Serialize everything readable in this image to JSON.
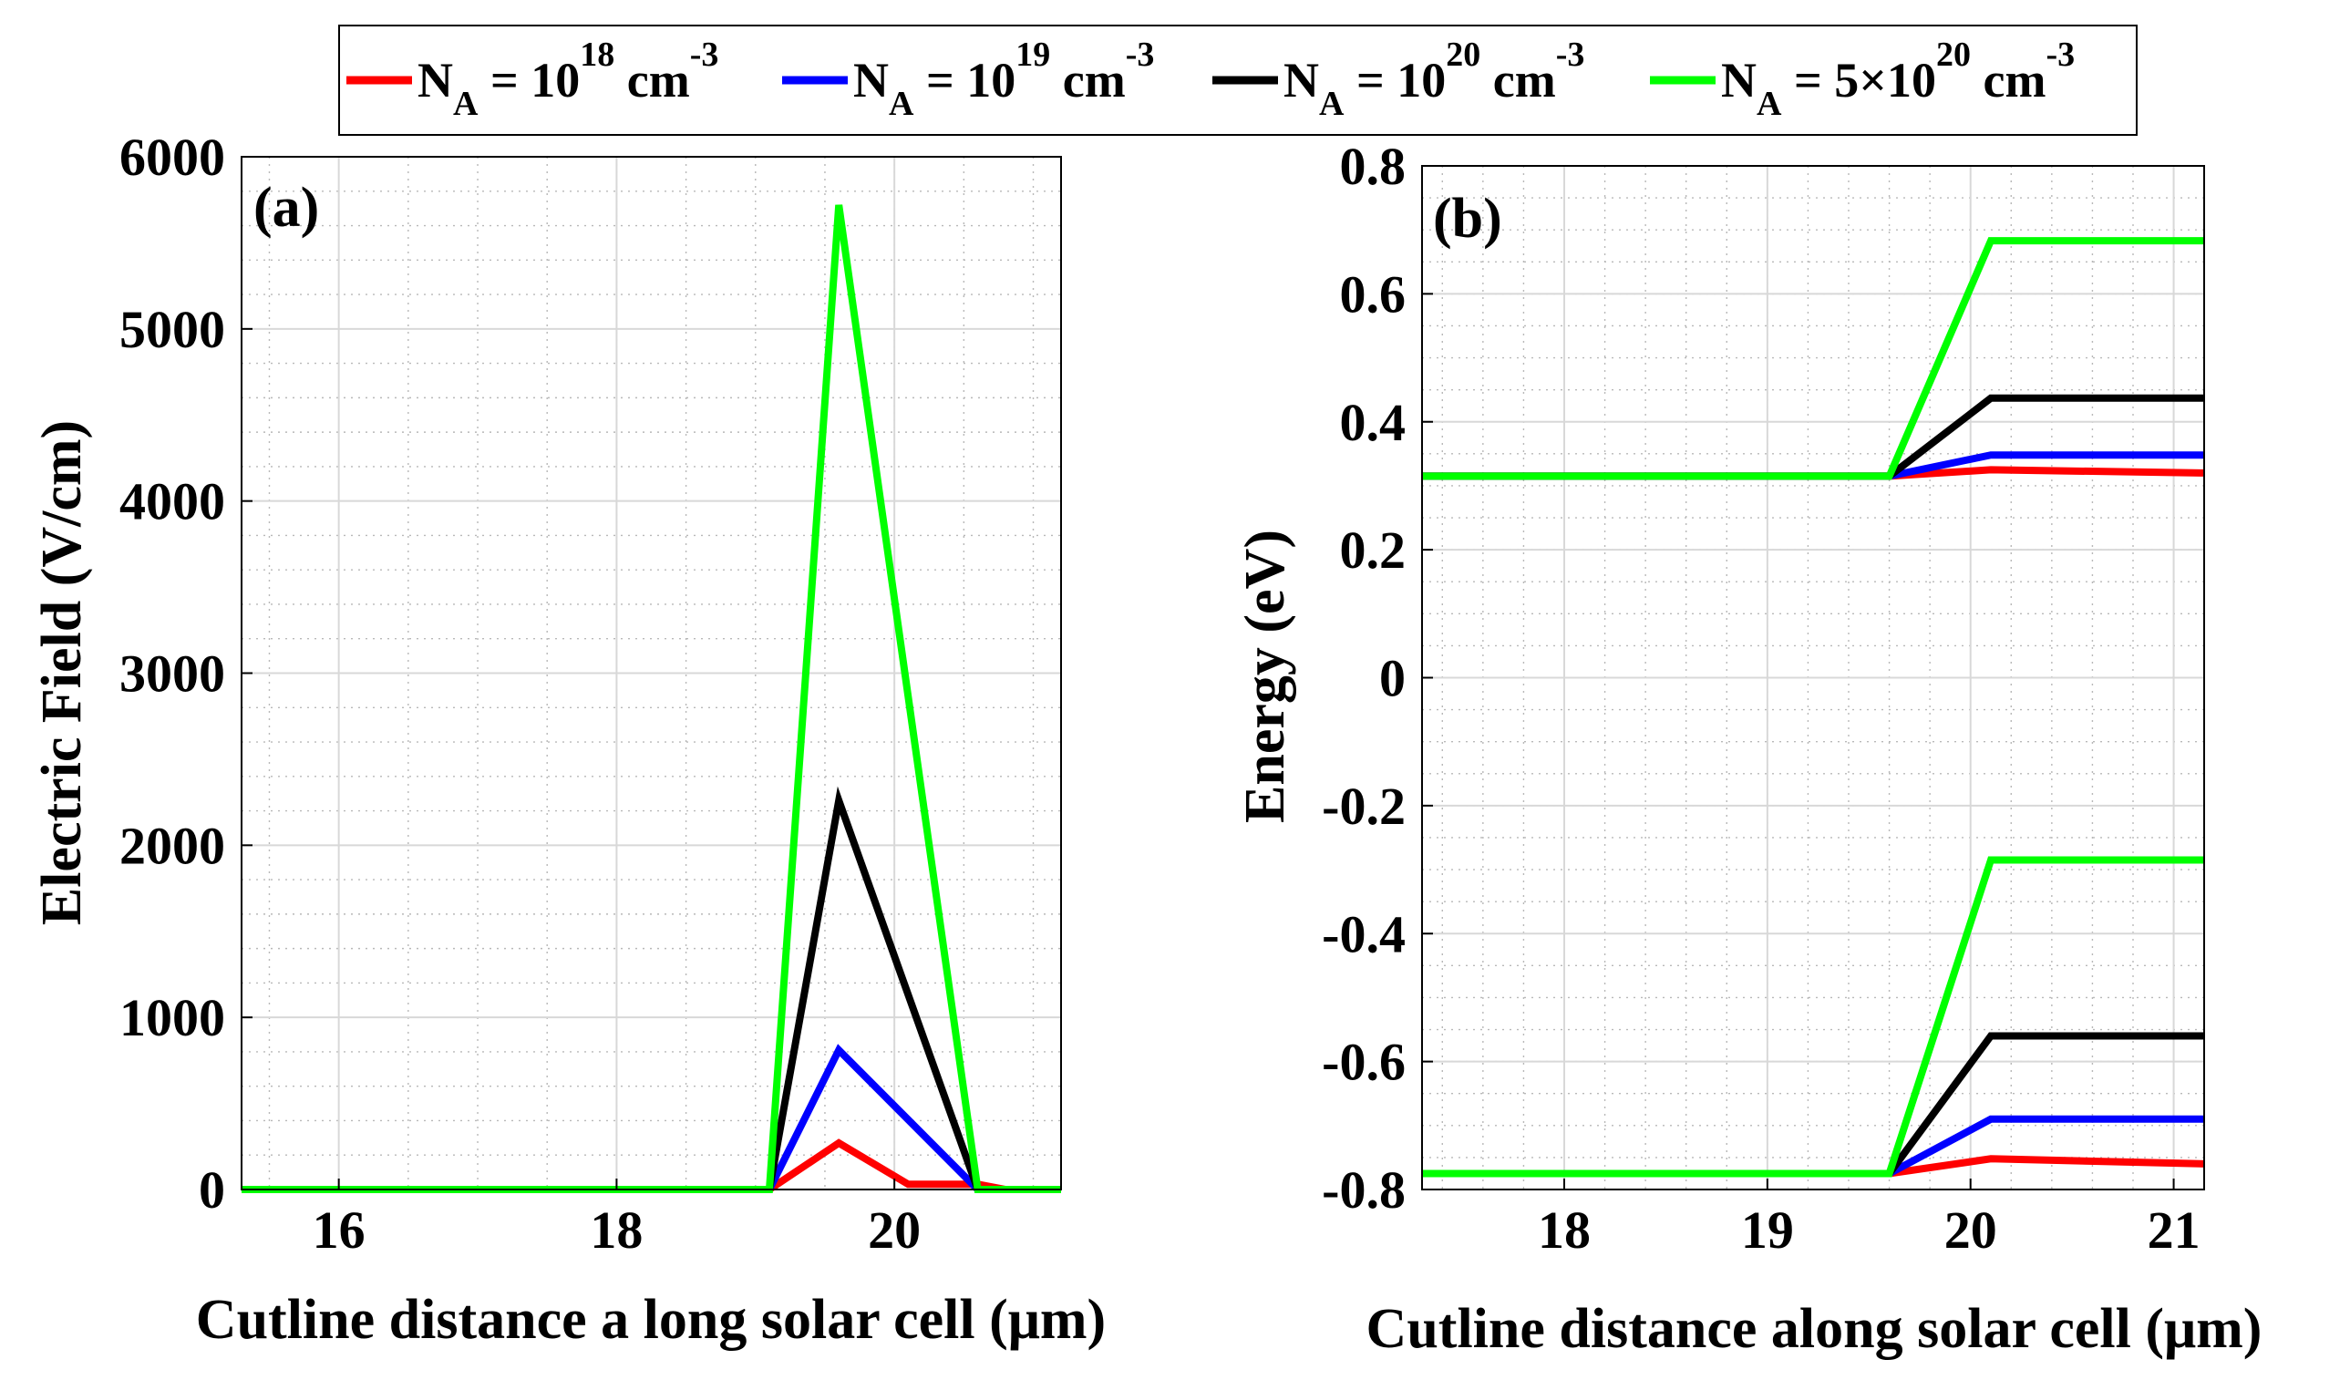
{
  "legend": {
    "entries": [
      {
        "symbol": "N",
        "subscript": "A",
        "text": " = 10",
        "exponent": "18",
        "unit": " cm",
        "unit_exp": "-3",
        "color": "#ff0000"
      },
      {
        "symbol": "N",
        "subscript": "A",
        "text": " = 10",
        "exponent": "19",
        "unit": " cm",
        "unit_exp": "-3",
        "color": "#0000ff"
      },
      {
        "symbol": "N",
        "subscript": "A",
        "text": " = 10",
        "exponent": "20",
        "unit": " cm",
        "unit_exp": "-3",
        "color": "#000000"
      },
      {
        "symbol": "N",
        "subscript": "A",
        "text": " = 5×10",
        "exponent": "20",
        "unit": " cm",
        "unit_exp": "-3",
        "color": "#00ff00"
      }
    ]
  },
  "chart_data": [
    {
      "type": "line",
      "panel_label": "(a)",
      "xlabel": "Cutline distance a long solar cell (μm)",
      "ylabel": "Electric Field (V/cm)",
      "xlim": [
        15.3,
        21.2
      ],
      "ylim": [
        0,
        6000
      ],
      "xticks": [
        16,
        18,
        20
      ],
      "xtick_labels": [
        "16",
        "18",
        "20"
      ],
      "yticks": [
        0,
        1000,
        2000,
        3000,
        4000,
        5000,
        6000
      ],
      "ytick_labels": [
        "0",
        "1000",
        "2000",
        "3000",
        "4000",
        "5000",
        "6000"
      ],
      "series": [
        {
          "name": "N_A = 10^18 cm^-3",
          "color": "#ff0000",
          "x": [
            15.3,
            19.1,
            19.6,
            20.1,
            20.6,
            20.8,
            21.2
          ],
          "y": [
            0,
            0,
            270,
            30,
            30,
            0,
            0
          ]
        },
        {
          "name": "N_A = 10^19 cm^-3",
          "color": "#0000ff",
          "x": [
            15.3,
            19.1,
            19.6,
            20.6,
            21.2
          ],
          "y": [
            0,
            0,
            810,
            0,
            0
          ]
        },
        {
          "name": "N_A = 10^20 cm^-3",
          "color": "#000000",
          "x": [
            15.3,
            19.1,
            19.6,
            20.6,
            21.2
          ],
          "y": [
            0,
            0,
            2260,
            0,
            0
          ]
        },
        {
          "name": "N_A = 5×10^20 cm^-3",
          "color": "#00ff00",
          "x": [
            15.3,
            19.1,
            19.6,
            20.6,
            21.2
          ],
          "y": [
            0,
            0,
            5720,
            0,
            0
          ]
        }
      ]
    },
    {
      "type": "line",
      "panel_label": "(b)",
      "xlabel": "Cutline distance along solar cell (μm)",
      "ylabel": "Energy (eV)",
      "xlim": [
        17.3,
        21.15
      ],
      "ylim": [
        -0.8,
        0.8
      ],
      "xticks": [
        18,
        19,
        20,
        21
      ],
      "xtick_labels": [
        "18",
        "19",
        "20",
        "21"
      ],
      "yticks": [
        -0.8,
        -0.6,
        -0.4,
        -0.2,
        0,
        0.2,
        0.4,
        0.6,
        0.8
      ],
      "ytick_labels": [
        "-0.8",
        "-0.6",
        "-0.4",
        "-0.2",
        "0",
        "0.2",
        "0.4",
        "0.6",
        "0.8"
      ],
      "series": [
        {
          "name": "N_A = 10^18 cm^-3 (Ec)",
          "color": "#ff0000",
          "x": [
            17.3,
            19.6,
            20.1,
            21.15
          ],
          "y": [
            0.315,
            0.315,
            0.325,
            0.32
          ]
        },
        {
          "name": "N_A = 10^18 cm^-3 (Ev)",
          "color": "#ff0000",
          "x": [
            17.3,
            19.6,
            20.1,
            21.15
          ],
          "y": [
            -0.775,
            -0.775,
            -0.752,
            -0.76
          ]
        },
        {
          "name": "N_A = 10^19 cm^-3 (Ec)",
          "color": "#0000ff",
          "x": [
            17.3,
            19.6,
            20.1,
            21.15
          ],
          "y": [
            0.315,
            0.315,
            0.348,
            0.348
          ]
        },
        {
          "name": "N_A = 10^19 cm^-3 (Ev)",
          "color": "#0000ff",
          "x": [
            17.3,
            19.6,
            20.1,
            21.15
          ],
          "y": [
            -0.775,
            -0.775,
            -0.69,
            -0.69
          ]
        },
        {
          "name": "N_A = 10^20 cm^-3 (Ec)",
          "color": "#000000",
          "x": [
            17.3,
            19.6,
            20.1,
            21.15
          ],
          "y": [
            0.315,
            0.315,
            0.437,
            0.437
          ]
        },
        {
          "name": "N_A = 10^20 cm^-3 (Ev)",
          "color": "#000000",
          "x": [
            17.3,
            19.6,
            20.1,
            21.15
          ],
          "y": [
            -0.775,
            -0.775,
            -0.56,
            -0.56
          ]
        },
        {
          "name": "N_A = 5×10^20 cm^-3 (Ec)",
          "color": "#00ff00",
          "x": [
            17.3,
            19.6,
            20.1,
            21.15
          ],
          "y": [
            0.315,
            0.315,
            0.683,
            0.683
          ]
        },
        {
          "name": "N_A = 5×10^20 cm^-3 (Ev)",
          "color": "#00ff00",
          "x": [
            17.3,
            19.6,
            20.1,
            21.15
          ],
          "y": [
            -0.775,
            -0.775,
            -0.285,
            -0.285
          ]
        }
      ]
    }
  ]
}
